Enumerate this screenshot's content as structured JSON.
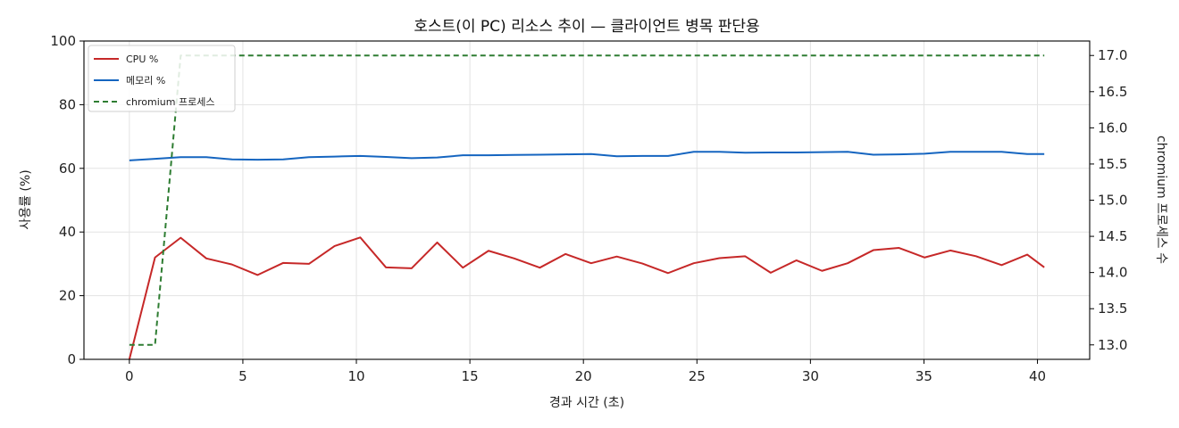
{
  "chart_data": {
    "type": "line",
    "title": "호스트(이 PC) 리소스 추이 — 클라이언트 병목 판단용",
    "xlabel": "경과 시간 (초)",
    "ylabel": "사용률 (%)",
    "ylabel_right": "chromium 프로세스 수",
    "xlim": [
      -2.0,
      42.3
    ],
    "ylim": [
      0,
      100
    ],
    "ylim_right": [
      12.8,
      17.2
    ],
    "x_ticks": [
      0,
      5,
      10,
      15,
      20,
      25,
      30,
      35,
      40
    ],
    "y_ticks": [
      0,
      20,
      40,
      60,
      80,
      100
    ],
    "y_ticks_right": [
      "13.0",
      "13.5",
      "14.0",
      "14.5",
      "15.0",
      "15.5",
      "16.0",
      "16.5",
      "17.0"
    ],
    "grid": true,
    "legend_position": "top-left",
    "x": [
      0,
      1.13,
      2.26,
      3.39,
      4.52,
      5.65,
      6.78,
      7.91,
      9.04,
      10.17,
      11.3,
      12.43,
      13.56,
      14.69,
      15.82,
      16.95,
      18.08,
      19.21,
      20.34,
      21.47,
      22.6,
      23.73,
      24.86,
      25.99,
      27.12,
      28.25,
      29.38,
      30.51,
      31.64,
      32.77,
      33.9,
      35.03,
      36.16,
      37.29,
      38.42,
      39.55,
      40.3
    ],
    "series": [
      {
        "name": "CPU %",
        "axis": "left",
        "color": "#c62828",
        "style": "solid",
        "values": [
          0,
          32,
          38.2,
          31.7,
          29.8,
          26.5,
          30.3,
          30,
          35.6,
          38.3,
          28.9,
          28.6,
          36.7,
          28.8,
          34.1,
          31.7,
          28.8,
          33.1,
          30.2,
          32.3,
          30.1,
          27.1,
          30.2,
          31.8,
          32.4,
          27.2,
          31.1,
          27.8,
          30.2,
          34.3,
          35,
          32,
          34.2,
          32.4,
          29.6,
          32.9,
          28.9
        ]
      },
      {
        "name": "메모리 %",
        "axis": "left",
        "color": "#1565c0",
        "style": "solid",
        "values": [
          62.5,
          63,
          63.5,
          63.5,
          62.8,
          62.7,
          62.8,
          63.5,
          63.7,
          63.9,
          63.6,
          63.2,
          63.4,
          64.1,
          64.1,
          64.2,
          64.3,
          64.4,
          64.5,
          63.8,
          63.9,
          63.9,
          65.2,
          65.2,
          64.9,
          65,
          65,
          65.1,
          65.2,
          64.3,
          64.4,
          64.6,
          65.2,
          65.2,
          65.2,
          64.5,
          64.5
        ]
      },
      {
        "name": "chromium 프로세스",
        "axis": "right",
        "color": "#2e7d32",
        "style": "dashed",
        "values": [
          13,
          13,
          17,
          17,
          17,
          17,
          17,
          17,
          17,
          17,
          17,
          17,
          17,
          17,
          17,
          17,
          17,
          17,
          17,
          17,
          17,
          17,
          17,
          17,
          17,
          17,
          17,
          17,
          17,
          17,
          17,
          17,
          17,
          17,
          17,
          17,
          17
        ]
      }
    ]
  }
}
